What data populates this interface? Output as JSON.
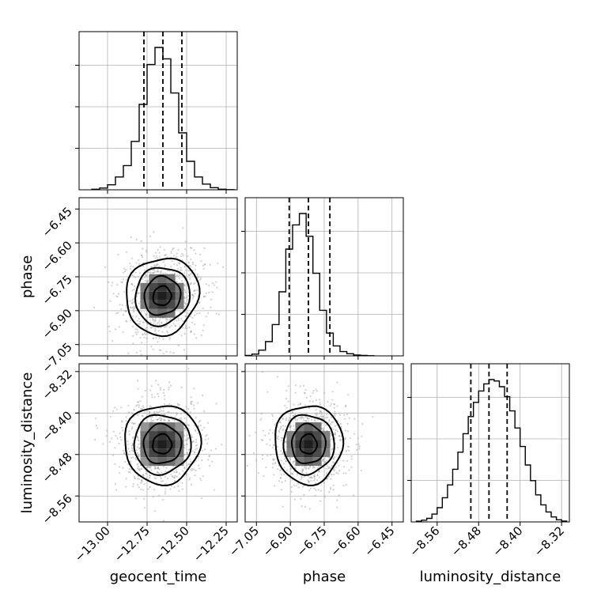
{
  "chart_data": {
    "type": "corner",
    "parameters": [
      "geocent_time",
      "phase",
      "luminosity_distance"
    ],
    "axis_ticks": {
      "geocent_time": [
        "-13.00",
        "-12.75",
        "-12.50",
        "-12.25"
      ],
      "phase": [
        "-7.05",
        "-6.90",
        "-6.75",
        "-6.60",
        "-6.45"
      ],
      "luminosity_distance": [
        "-8.56",
        "-8.48",
        "-8.40",
        "-8.32"
      ]
    },
    "ranges": {
      "geocent_time": [
        -13.18,
        -12.18
      ],
      "phase": [
        -7.1,
        -6.4
      ],
      "luminosity_distance": [
        -8.61,
        -8.305
      ]
    },
    "marginals": {
      "geocent_time": {
        "bin_edges": [
          -13.1,
          -13.05,
          -13.0,
          -12.95,
          -12.9,
          -12.85,
          -12.8,
          -12.75,
          -12.7,
          -12.65,
          -12.6,
          -12.55,
          -12.5,
          -12.45,
          -12.4,
          -12.35,
          -12.3,
          -12.25,
          -12.2
        ],
        "counts": [
          0.004,
          0.012,
          0.035,
          0.09,
          0.17,
          0.34,
          0.6,
          0.88,
          1.0,
          0.92,
          0.68,
          0.4,
          0.2,
          0.09,
          0.04,
          0.015,
          0.004,
          0.001
        ],
        "quantiles": [
          -12.77,
          -12.65,
          -12.53
        ]
      },
      "phase": {
        "bin_edges": [
          -7.1,
          -7.07,
          -7.04,
          -7.01,
          -6.98,
          -6.95,
          -6.92,
          -6.89,
          -6.86,
          -6.83,
          -6.8,
          -6.77,
          -6.74,
          -6.71,
          -6.68,
          -6.65,
          -6.62,
          -6.59,
          -6.56,
          -6.53
        ],
        "counts": [
          0.003,
          0.012,
          0.04,
          0.1,
          0.22,
          0.45,
          0.75,
          0.92,
          1.0,
          0.84,
          0.58,
          0.32,
          0.16,
          0.07,
          0.03,
          0.015,
          0.006,
          0.003,
          0.001
        ],
        "quantiles": [
          -6.905,
          -6.82,
          -6.725
        ]
      },
      "luminosity_distance": {
        "bin_edges": [
          -8.6,
          -8.59,
          -8.58,
          -8.57,
          -8.56,
          -8.55,
          -8.54,
          -8.53,
          -8.52,
          -8.51,
          -8.5,
          -8.49,
          -8.48,
          -8.47,
          -8.46,
          -8.45,
          -8.44,
          -8.43,
          -8.42,
          -8.41,
          -8.4,
          -8.39,
          -8.38,
          -8.37,
          -8.36,
          -8.35,
          -8.34,
          -8.33,
          -8.32,
          -8.31
        ],
        "counts": [
          0.005,
          0.012,
          0.025,
          0.055,
          0.1,
          0.17,
          0.26,
          0.37,
          0.49,
          0.62,
          0.74,
          0.84,
          0.92,
          0.97,
          1.0,
          0.99,
          0.95,
          0.88,
          0.78,
          0.66,
          0.53,
          0.4,
          0.29,
          0.19,
          0.12,
          0.07,
          0.035,
          0.015,
          0.006
        ],
        "quantiles": [
          -8.495,
          -8.46,
          -8.425
        ]
      }
    },
    "joint": [
      {
        "x": "geocent_time",
        "y": "phase",
        "center": [
          -12.655,
          -6.835
        ],
        "sigma": [
          0.115,
          0.085
        ],
        "rho": 0.12,
        "contour_levels_sigma": [
          0.5,
          1.0,
          1.5,
          2.0
        ]
      },
      {
        "x": "geocent_time",
        "y": "luminosity_distance",
        "center": [
          -12.655,
          -8.46
        ],
        "sigma": [
          0.12,
          0.038
        ],
        "rho": 0.02,
        "contour_levels_sigma": [
          0.5,
          1.0,
          1.5,
          2.0
        ]
      },
      {
        "x": "phase",
        "y": "luminosity_distance",
        "center": [
          -6.82,
          -8.46
        ],
        "sigma": [
          0.075,
          0.038
        ],
        "rho": 0.0,
        "contour_levels_sigma": [
          0.5,
          1.0,
          1.5,
          2.0
        ]
      }
    ]
  }
}
